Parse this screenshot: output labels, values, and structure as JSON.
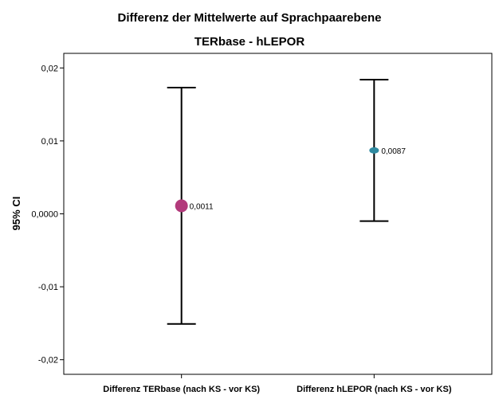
{
  "chart_data": {
    "type": "errorbar",
    "title": "Differenz der Mittelwerte auf Sprachpaarebene",
    "subtitle": "TERbase - hLEPOR",
    "ylabel": "95% CI",
    "xlabel": "",
    "ylim": [
      -0.022,
      0.022
    ],
    "yticks": [
      0.02,
      0.01,
      0.0,
      -0.01,
      -0.02
    ],
    "ytick_labels": [
      "0,02",
      "0,01",
      "0,0000",
      "-0,01",
      "-0,02"
    ],
    "grid": false,
    "categories": [
      "Differenz TERbase (nach KS - vor KS)",
      "Differenz hLEPOR (nach KS - vor KS)"
    ],
    "series": [
      {
        "means": [
          0.0011,
          0.0087
        ],
        "lower": [
          -0.0151,
          -0.001
        ],
        "upper": [
          0.0173,
          0.0184
        ],
        "mean_labels": [
          "0,0011",
          "0,0087"
        ],
        "colors": [
          "#b23a7b",
          "#2f8aa0"
        ]
      }
    ]
  }
}
